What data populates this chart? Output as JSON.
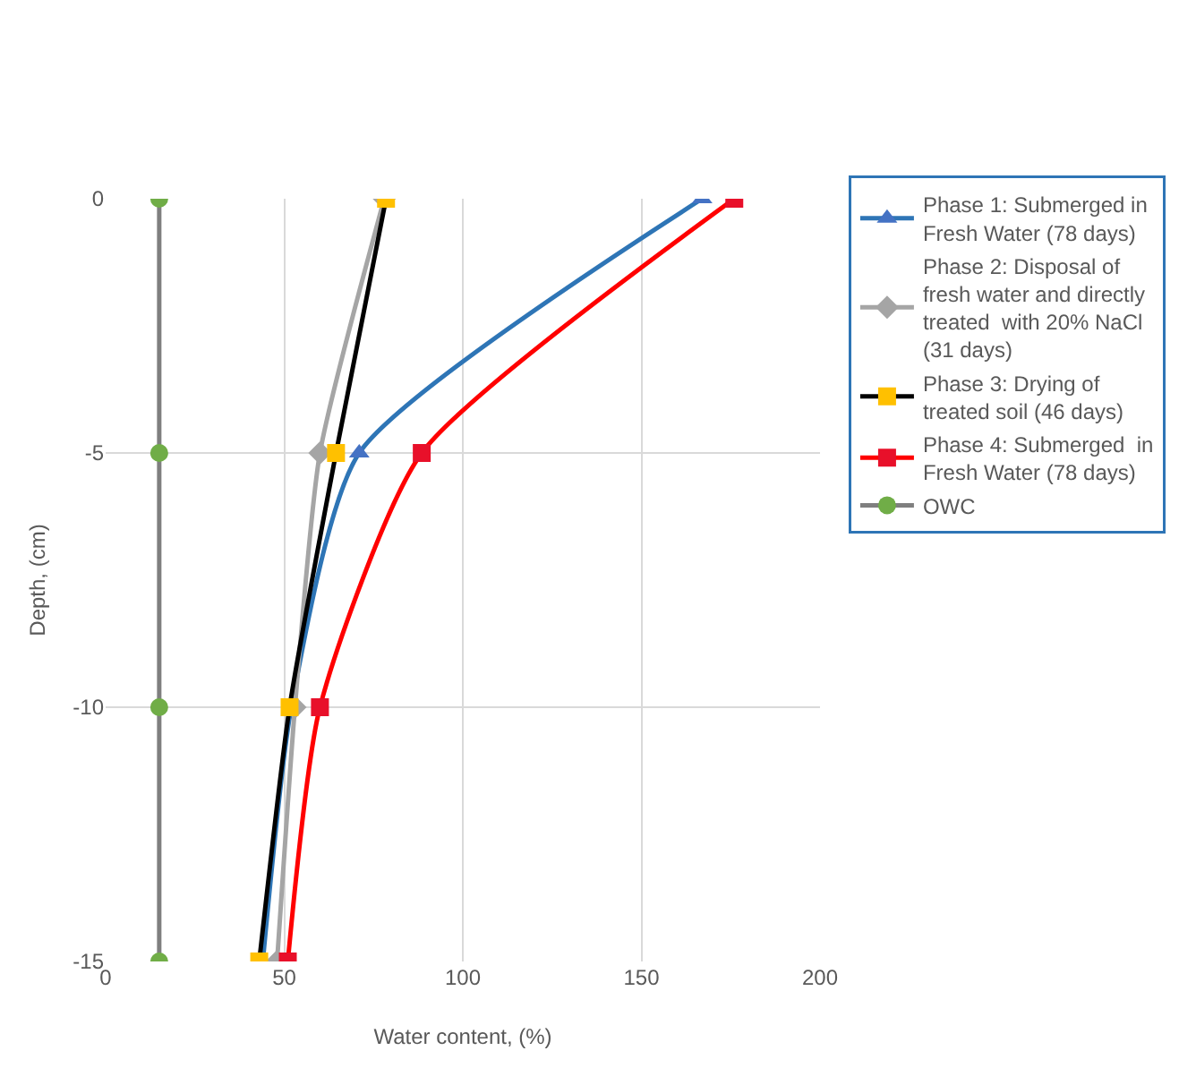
{
  "chart_data": {
    "type": "line",
    "xlabel": "Water content, (%)",
    "ylabel": "Depth, (cm)",
    "xlim": [
      0,
      200
    ],
    "xticks": [
      0,
      50,
      100,
      150,
      200
    ],
    "ylim": [
      -15,
      0
    ],
    "yticks": [
      -15,
      -10,
      -5,
      0
    ],
    "grid": true,
    "legend": "right",
    "series": [
      {
        "name": "Phase 1: Submerged in Fresh Water (78 days)",
        "color": "#2e75b6",
        "colors": [
          "#4472c4",
          "#4472c4",
          "#4472c4",
          "#4472c4"
        ],
        "marker": "triangle",
        "x": [
          167,
          71,
          52,
          44
        ],
        "values": [
          0,
          -5,
          -10,
          -15
        ]
      },
      {
        "name": "Phase 2: Disposal of fresh water and directly treated  with 20% NaCl (31 days)",
        "color": "#a5a5a5",
        "colors": [
          "#a5a5a5",
          "#a5a5a5",
          "#a5a5a5",
          "#a5a5a5"
        ],
        "marker": "diamond",
        "x": [
          78,
          60,
          53,
          48
        ],
        "values": [
          0,
          -5,
          -10,
          -15
        ]
      },
      {
        "name": "Phase 3: Drying of treated soil (46 days)",
        "color": "#000000",
        "colors": [
          "#ffc000",
          "#ffc000",
          "#ffc000",
          "#ffc000"
        ],
        "marker": "square",
        "x": [
          78.5,
          64.5,
          51.5,
          43
        ],
        "values": [
          0,
          -5,
          -10,
          -15
        ]
      },
      {
        "name": "Phase 4: Submerged  in Fresh Water (78 days)",
        "color": "#ff0000",
        "colors": [
          "#e8102a",
          "#e8102a",
          "#e8102a",
          "#e8102a"
        ],
        "marker": "square",
        "x": [
          176,
          88.5,
          60,
          51
        ],
        "values": [
          0,
          -5,
          -10,
          -15
        ]
      },
      {
        "name": "OWC",
        "color": "#7f7f7f",
        "colors": [
          "#70ad47",
          "#70ad47",
          "#70ad47",
          "#70ad47"
        ],
        "marker": "circle",
        "x": [
          15,
          15,
          15,
          15
        ],
        "values": [
          0,
          -5,
          -10,
          -15
        ]
      }
    ]
  }
}
